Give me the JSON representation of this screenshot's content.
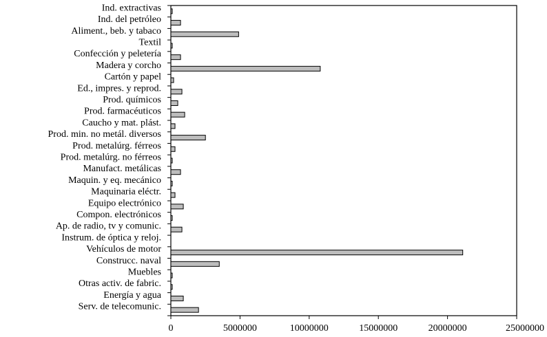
{
  "chart_data": {
    "type": "bar",
    "orientation": "horizontal",
    "categories": [
      "Ind. extractivas",
      "Ind. del petróleo",
      "Aliment., beb. y tabaco",
      "Textil",
      "Confección y peletería",
      "Madera y corcho",
      "Cartón y papel",
      "Ed., impres. y reprod.",
      "Prod. químicos",
      "Prod. farmacéuticos",
      "Caucho y mat. plást.",
      "Prod. min. no metál. diversos",
      "Prod. metalúrg. férreos",
      "Prod. metalúrg. no férreos",
      "Manufact. metálicas",
      "Maquin. y eq. mecánico",
      "Maquinaria eléctr.",
      "Equipo electrónico",
      "Compon. electrónicos",
      "Ap. de radio, tv y comunic.",
      "Instrum. de óptica y reloj.",
      "Vehículos de motor",
      "Construcc. naval",
      "Muebles",
      "Otras activ. de fabric.",
      "Energía y agua",
      "Serv. de telecomunic."
    ],
    "values": [
      100000,
      700000,
      4900000,
      100000,
      700000,
      10800000,
      200000,
      800000,
      500000,
      1000000,
      300000,
      2500000,
      300000,
      100000,
      700000,
      100000,
      300000,
      900000,
      100000,
      800000,
      0,
      21100000,
      3500000,
      100000,
      100000,
      900000,
      2000000
    ],
    "xlim": [
      0,
      25000000
    ],
    "xticks": [
      "0",
      "5000000",
      "10000000",
      "15000000",
      "20000000",
      "25000000"
    ],
    "xtick_values": [
      0,
      5000000,
      10000000,
      15000000,
      20000000,
      25000000
    ],
    "title": "",
    "xlabel": "",
    "ylabel": "",
    "grid": false,
    "colors": {
      "bar_fill": "#bdbdbd",
      "bar_stroke": "#000000"
    }
  }
}
